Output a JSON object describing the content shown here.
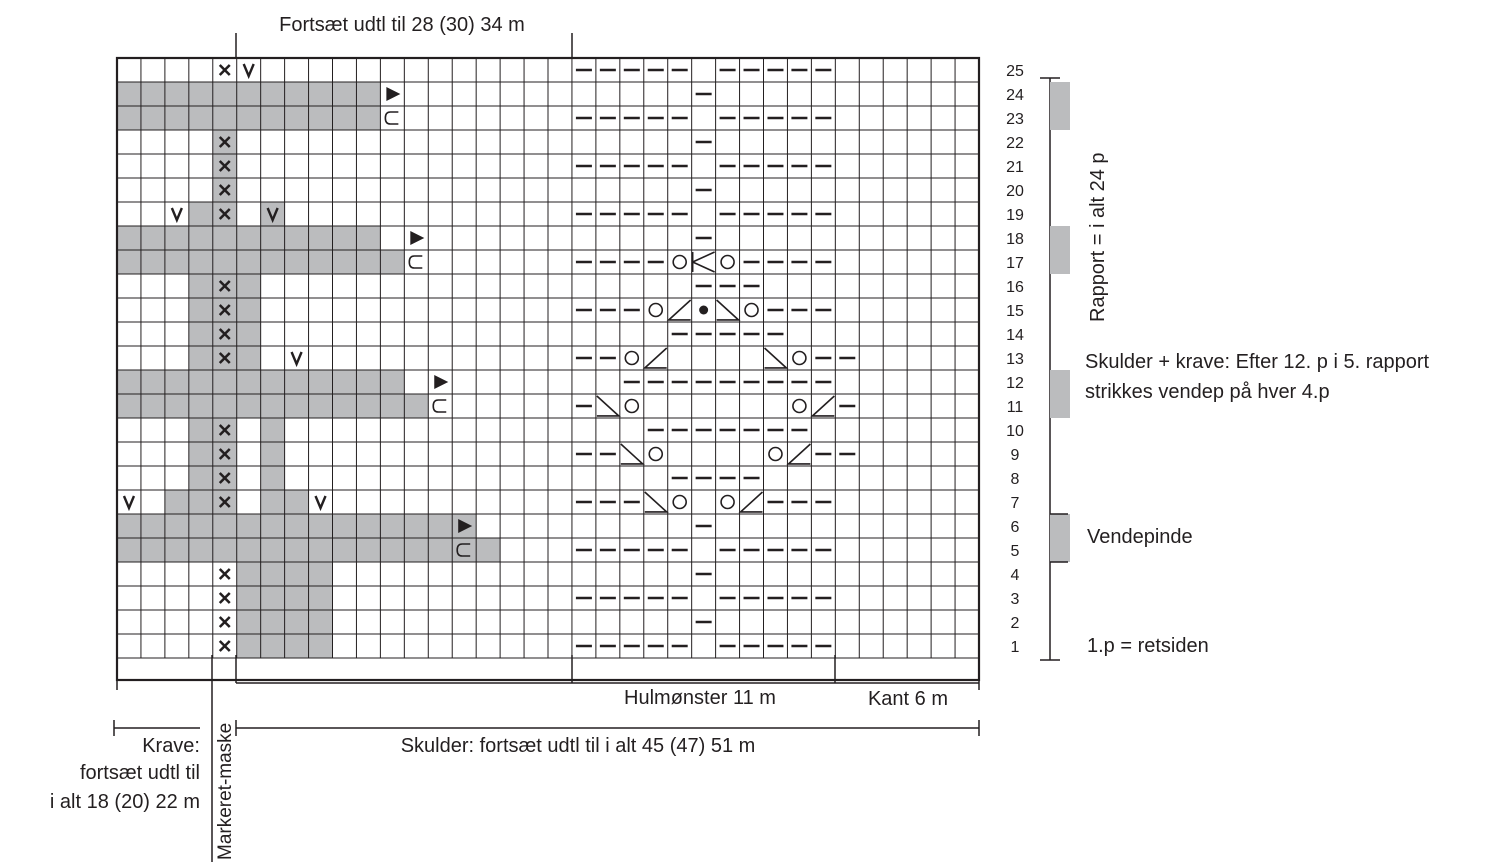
{
  "labels": {
    "top": "Fortsæt udtl til 28 (30) 34 m",
    "lace": "Hulmønster 11 m",
    "edge": "Kant 6 m",
    "shoulder": "Skulder: fortsæt udtl til i alt 45 (47) 51 m",
    "collar_1": "Krave:",
    "collar_2": "fortsæt udtl til",
    "collar_3": "i alt 18 (20) 22 m",
    "marker": "Markeret-maske",
    "repeat": "Rapport = i alt 24 p",
    "shoulder_note_1": "Skulder + krave: Efter 12. p i 5. rapport",
    "shoulder_note_2": "strikkes vendep på hver 4.p",
    "turning": "Vendepinde",
    "first_row": "1.p = retsiden"
  },
  "row_numbers": [
    "1",
    "2",
    "3",
    "4",
    "5",
    "6",
    "7",
    "8",
    "9",
    "10",
    "11",
    "12",
    "13",
    "14",
    "15",
    "16",
    "17",
    "18",
    "19",
    "20",
    "21",
    "22",
    "23",
    "24",
    "25"
  ],
  "grid": {
    "cols": 36,
    "rows": 25,
    "cell_fill": "#bbbcbe",
    "line_color": "#231f20"
  },
  "shaded_runs": [
    [
      1,
      6,
      9,
      "full"
    ],
    [
      2,
      6,
      9,
      "full"
    ],
    [
      3,
      6,
      9,
      "full"
    ],
    [
      4,
      6,
      9,
      "full"
    ],
    [
      5,
      1,
      16,
      "full"
    ],
    [
      6,
      1,
      15,
      "full"
    ],
    [
      7,
      3,
      5,
      "full"
    ],
    [
      7,
      7,
      8,
      "full"
    ],
    [
      8,
      4,
      5,
      "full"
    ],
    [
      8,
      7,
      7,
      "full"
    ],
    [
      9,
      4,
      5,
      "full"
    ],
    [
      9,
      7,
      7,
      "full"
    ],
    [
      10,
      4,
      5,
      "full"
    ],
    [
      10,
      7,
      7,
      "full"
    ],
    [
      11,
      1,
      13,
      "full"
    ],
    [
      12,
      1,
      12,
      "full"
    ],
    [
      13,
      4,
      6,
      "full"
    ],
    [
      14,
      4,
      6,
      "full"
    ],
    [
      15,
      4,
      6,
      "full"
    ],
    [
      16,
      4,
      6,
      "full"
    ],
    [
      17,
      1,
      12,
      "full"
    ],
    [
      18,
      1,
      11,
      "full"
    ],
    [
      19,
      4,
      5,
      "full"
    ],
    [
      19,
      7,
      7,
      "full"
    ],
    [
      20,
      5,
      5,
      "full"
    ],
    [
      21,
      5,
      5,
      "full"
    ],
    [
      22,
      5,
      5,
      "full"
    ],
    [
      23,
      1,
      11,
      "full"
    ],
    [
      24,
      1,
      11,
      "full"
    ]
  ],
  "symbols": [
    [
      1,
      5,
      "x"
    ],
    [
      2,
      5,
      "x"
    ],
    [
      3,
      5,
      "x"
    ],
    [
      4,
      5,
      "x"
    ],
    [
      5,
      15,
      "u"
    ],
    [
      6,
      15,
      "tri"
    ],
    [
      7,
      1,
      "v"
    ],
    [
      7,
      5,
      "x"
    ],
    [
      7,
      9,
      "v"
    ],
    [
      8,
      5,
      "x"
    ],
    [
      9,
      5,
      "x"
    ],
    [
      10,
      5,
      "x"
    ],
    [
      11,
      14,
      "u"
    ],
    [
      12,
      14,
      "tri"
    ],
    [
      13,
      5,
      "x"
    ],
    [
      13,
      8,
      "v"
    ],
    [
      14,
      5,
      "x"
    ],
    [
      15,
      5,
      "x"
    ],
    [
      16,
      5,
      "x"
    ],
    [
      17,
      13,
      "u"
    ],
    [
      18,
      13,
      "tri"
    ],
    [
      19,
      3,
      "v"
    ],
    [
      19,
      5,
      "x"
    ],
    [
      19,
      7,
      "v"
    ],
    [
      20,
      5,
      "x"
    ],
    [
      21,
      5,
      "x"
    ],
    [
      22,
      5,
      "x"
    ],
    [
      23,
      12,
      "u"
    ],
    [
      24,
      12,
      "tri"
    ],
    [
      25,
      5,
      "x"
    ],
    [
      25,
      6,
      "v"
    ],
    [
      1,
      20,
      "dash"
    ],
    [
      1,
      21,
      "dash"
    ],
    [
      1,
      22,
      "dash"
    ],
    [
      1,
      23,
      "dash"
    ],
    [
      1,
      24,
      "dash"
    ],
    [
      1,
      26,
      "dash"
    ],
    [
      1,
      27,
      "dash"
    ],
    [
      1,
      28,
      "dash"
    ],
    [
      1,
      29,
      "dash"
    ],
    [
      1,
      30,
      "dash"
    ],
    [
      2,
      25,
      "dash"
    ],
    [
      3,
      20,
      "dash"
    ],
    [
      3,
      21,
      "dash"
    ],
    [
      3,
      22,
      "dash"
    ],
    [
      3,
      23,
      "dash"
    ],
    [
      3,
      24,
      "dash"
    ],
    [
      3,
      26,
      "dash"
    ],
    [
      3,
      27,
      "dash"
    ],
    [
      3,
      28,
      "dash"
    ],
    [
      3,
      29,
      "dash"
    ],
    [
      3,
      30,
      "dash"
    ],
    [
      4,
      25,
      "dash"
    ],
    [
      5,
      20,
      "dash"
    ],
    [
      5,
      21,
      "dash"
    ],
    [
      5,
      22,
      "dash"
    ],
    [
      5,
      23,
      "dash"
    ],
    [
      5,
      24,
      "dash"
    ],
    [
      5,
      26,
      "dash"
    ],
    [
      5,
      27,
      "dash"
    ],
    [
      5,
      28,
      "dash"
    ],
    [
      5,
      29,
      "dash"
    ],
    [
      5,
      30,
      "dash"
    ],
    [
      6,
      25,
      "dash"
    ],
    [
      7,
      20,
      "dash"
    ],
    [
      7,
      21,
      "dash"
    ],
    [
      7,
      22,
      "dash"
    ],
    [
      7,
      23,
      "bs"
    ],
    [
      7,
      24,
      "o"
    ],
    [
      7,
      26,
      "o"
    ],
    [
      7,
      27,
      "fs"
    ],
    [
      7,
      28,
      "dash"
    ],
    [
      7,
      29,
      "dash"
    ],
    [
      7,
      30,
      "dash"
    ],
    [
      8,
      24,
      "dash"
    ],
    [
      8,
      25,
      "dash"
    ],
    [
      8,
      26,
      "dash"
    ],
    [
      8,
      27,
      "dash"
    ],
    [
      9,
      20,
      "dash"
    ],
    [
      9,
      21,
      "dash"
    ],
    [
      9,
      22,
      "bs"
    ],
    [
      9,
      23,
      "o"
    ],
    [
      9,
      28,
      "o"
    ],
    [
      9,
      29,
      "fs"
    ],
    [
      9,
      30,
      "dash"
    ],
    [
      9,
      31,
      "dash"
    ],
    [
      10,
      23,
      "dash"
    ],
    [
      10,
      24,
      "dash"
    ],
    [
      10,
      25,
      "dash"
    ],
    [
      10,
      26,
      "dash"
    ],
    [
      10,
      27,
      "dash"
    ],
    [
      10,
      28,
      "dash"
    ],
    [
      10,
      29,
      "dash"
    ],
    [
      11,
      20,
      "dash"
    ],
    [
      11,
      21,
      "bs"
    ],
    [
      11,
      22,
      "o"
    ],
    [
      11,
      29,
      "o"
    ],
    [
      11,
      30,
      "fs"
    ],
    [
      11,
      31,
      "dash"
    ],
    [
      12,
      22,
      "dash"
    ],
    [
      12,
      23,
      "dash"
    ],
    [
      12,
      24,
      "dash"
    ],
    [
      12,
      25,
      "dash"
    ],
    [
      12,
      26,
      "dash"
    ],
    [
      12,
      27,
      "dash"
    ],
    [
      12,
      28,
      "dash"
    ],
    [
      12,
      29,
      "dash"
    ],
    [
      12,
      30,
      "dash"
    ],
    [
      13,
      20,
      "dash"
    ],
    [
      13,
      21,
      "dash"
    ],
    [
      13,
      22,
      "o"
    ],
    [
      13,
      23,
      "fs"
    ],
    [
      13,
      28,
      "bs"
    ],
    [
      13,
      29,
      "o"
    ],
    [
      13,
      30,
      "dash"
    ],
    [
      13,
      31,
      "dash"
    ],
    [
      14,
      24,
      "dash"
    ],
    [
      14,
      25,
      "dash"
    ],
    [
      14,
      26,
      "dash"
    ],
    [
      14,
      27,
      "dash"
    ],
    [
      14,
      28,
      "dash"
    ],
    [
      15,
      20,
      "dash"
    ],
    [
      15,
      21,
      "dash"
    ],
    [
      15,
      22,
      "dash"
    ],
    [
      15,
      23,
      "o"
    ],
    [
      15,
      24,
      "fs"
    ],
    [
      15,
      25,
      "dot"
    ],
    [
      15,
      26,
      "bs"
    ],
    [
      15,
      27,
      "o"
    ],
    [
      15,
      28,
      "dash"
    ],
    [
      15,
      29,
      "dash"
    ],
    [
      15,
      30,
      "dash"
    ],
    [
      16,
      25,
      "dash"
    ],
    [
      16,
      26,
      "dash"
    ],
    [
      16,
      27,
      "dash"
    ],
    [
      17,
      20,
      "dash"
    ],
    [
      17,
      21,
      "dash"
    ],
    [
      17,
      22,
      "dash"
    ],
    [
      17,
      23,
      "dash"
    ],
    [
      17,
      24,
      "o"
    ],
    [
      17,
      25,
      "cdd"
    ],
    [
      17,
      26,
      "o"
    ],
    [
      17,
      27,
      "dash"
    ],
    [
      17,
      28,
      "dash"
    ],
    [
      17,
      29,
      "dash"
    ],
    [
      17,
      30,
      "dash"
    ],
    [
      18,
      25,
      "dash"
    ],
    [
      19,
      20,
      "dash"
    ],
    [
      19,
      21,
      "dash"
    ],
    [
      19,
      22,
      "dash"
    ],
    [
      19,
      23,
      "dash"
    ],
    [
      19,
      24,
      "dash"
    ],
    [
      19,
      26,
      "dash"
    ],
    [
      19,
      27,
      "dash"
    ],
    [
      19,
      28,
      "dash"
    ],
    [
      19,
      29,
      "dash"
    ],
    [
      19,
      30,
      "dash"
    ],
    [
      20,
      25,
      "dash"
    ],
    [
      21,
      20,
      "dash"
    ],
    [
      21,
      21,
      "dash"
    ],
    [
      21,
      22,
      "dash"
    ],
    [
      21,
      23,
      "dash"
    ],
    [
      21,
      24,
      "dash"
    ],
    [
      21,
      26,
      "dash"
    ],
    [
      21,
      27,
      "dash"
    ],
    [
      21,
      28,
      "dash"
    ],
    [
      21,
      29,
      "dash"
    ],
    [
      21,
      30,
      "dash"
    ],
    [
      22,
      25,
      "dash"
    ],
    [
      23,
      20,
      "dash"
    ],
    [
      23,
      21,
      "dash"
    ],
    [
      23,
      22,
      "dash"
    ],
    [
      23,
      23,
      "dash"
    ],
    [
      23,
      24,
      "dash"
    ],
    [
      23,
      26,
      "dash"
    ],
    [
      23,
      27,
      "dash"
    ],
    [
      23,
      28,
      "dash"
    ],
    [
      23,
      29,
      "dash"
    ],
    [
      23,
      30,
      "dash"
    ],
    [
      24,
      25,
      "dash"
    ],
    [
      25,
      20,
      "dash"
    ],
    [
      25,
      21,
      "dash"
    ],
    [
      25,
      22,
      "dash"
    ],
    [
      25,
      23,
      "dash"
    ],
    [
      25,
      24,
      "dash"
    ],
    [
      25,
      26,
      "dash"
    ],
    [
      25,
      27,
      "dash"
    ],
    [
      25,
      28,
      "dash"
    ],
    [
      25,
      29,
      "dash"
    ],
    [
      25,
      30,
      "dash"
    ]
  ],
  "sidebar_grey_rows": [
    [
      5,
      6
    ],
    [
      11,
      12
    ],
    [
      17,
      18
    ],
    [
      23,
      24
    ]
  ]
}
